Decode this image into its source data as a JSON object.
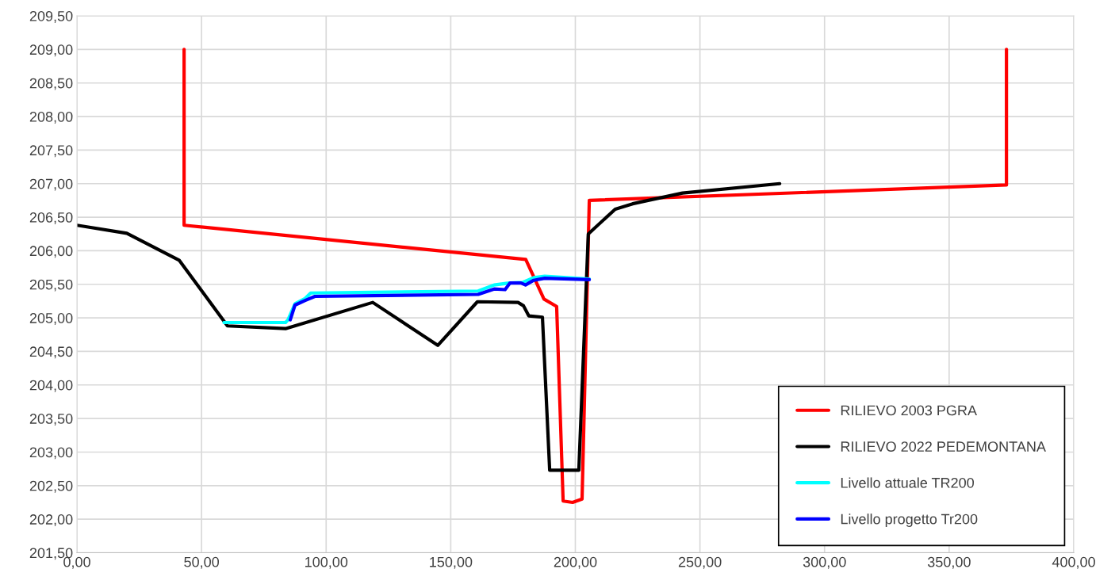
{
  "chart_data": {
    "type": "line",
    "series": [
      {
        "name": "RILIEVO 2003 PGRA",
        "color": "#ff0000",
        "x": [
          43,
          43,
          180.1,
          187.4,
          192.5,
          195.1,
          198.9,
          202.7,
          205.6,
          373,
          373
        ],
        "values": [
          209.0,
          206.38,
          205.87,
          205.28,
          205.17,
          202.27,
          202.25,
          202.3,
          206.75,
          206.98,
          209.0
        ]
      },
      {
        "name": "RILIEVO 2022 PEDEMONTANA",
        "color": "#000000",
        "x": [
          0,
          20,
          41,
          60.4,
          83.7,
          118.7,
          144.8,
          160.7,
          177,
          179.2,
          181.3,
          186.8,
          189.7,
          201.4,
          205.2,
          216,
          223,
          243,
          282
        ],
        "values": [
          206.38,
          206.26,
          205.86,
          204.88,
          204.84,
          205.23,
          204.59,
          205.24,
          205.23,
          205.18,
          205.03,
          205.01,
          202.73,
          202.73,
          206.25,
          206.62,
          206.7,
          206.86,
          207.0
        ]
      },
      {
        "name": "Livello attuale TR200",
        "color": "#00ffff",
        "x": [
          59,
          83.7,
          84.7,
          87.5,
          91.6,
          93.8,
          161,
          167.4,
          173.4,
          179,
          183.3,
          187.7,
          205.6
        ],
        "values": [
          204.93,
          204.93,
          204.97,
          205.21,
          205.29,
          205.37,
          205.4,
          205.49,
          205.52,
          205.53,
          205.6,
          205.62,
          205.58
        ]
      },
      {
        "name": "Livello progetto Tr200",
        "color": "#0000ff",
        "x": [
          85.6,
          87.5,
          91.6,
          95.5,
          161,
          167.4,
          171.8,
          173.8,
          178.2,
          180,
          183.3,
          187.7,
          205.6
        ],
        "values": [
          204.97,
          205.19,
          205.26,
          205.32,
          205.35,
          205.43,
          205.42,
          205.52,
          205.52,
          205.49,
          205.56,
          205.59,
          205.57
        ]
      }
    ],
    "xlim": [
      0,
      400
    ],
    "xticks": [
      {
        "value": 0,
        "label": "0,00"
      },
      {
        "value": 50,
        "label": "50,00"
      },
      {
        "value": 100,
        "label": "100,00"
      },
      {
        "value": 150,
        "label": "150,00"
      },
      {
        "value": 200,
        "label": "200,00"
      },
      {
        "value": 250,
        "label": "250,00"
      },
      {
        "value": 300,
        "label": "300,00"
      },
      {
        "value": 350,
        "label": "350,00"
      },
      {
        "value": 400,
        "label": "400,00"
      }
    ],
    "ylim": [
      201.5,
      209.5
    ],
    "yticks": [
      {
        "value": 201.5,
        "label": "201,50"
      },
      {
        "value": 202,
        "label": "202,00"
      },
      {
        "value": 202.5,
        "label": "202,50"
      },
      {
        "value": 203,
        "label": "203,00"
      },
      {
        "value": 203.5,
        "label": "203,50"
      },
      {
        "value": 204,
        "label": "204,00"
      },
      {
        "value": 204.5,
        "label": "204,50"
      },
      {
        "value": 205,
        "label": "205,00"
      },
      {
        "value": 205.5,
        "label": "205,50"
      },
      {
        "value": 206,
        "label": "206,00"
      },
      {
        "value": 206.5,
        "label": "206,50"
      },
      {
        "value": 207,
        "label": "207,00"
      },
      {
        "value": 207.5,
        "label": "207,50"
      },
      {
        "value": 208,
        "label": "208,00"
      },
      {
        "value": 208.5,
        "label": "208,50"
      },
      {
        "value": 209,
        "label": "209,00"
      },
      {
        "value": 209.5,
        "label": "209,50"
      }
    ],
    "grid": true,
    "legend": "bottom right"
  }
}
